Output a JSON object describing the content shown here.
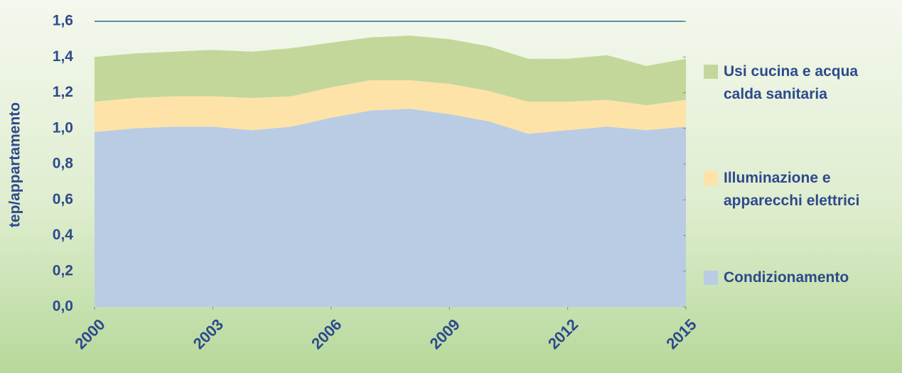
{
  "chart_data": {
    "type": "stacked_area",
    "y_label": "tep/appartamento",
    "x": [
      2000,
      2001,
      2002,
      2003,
      2004,
      2005,
      2006,
      2007,
      2008,
      2009,
      2010,
      2011,
      2012,
      2013,
      2014,
      2015
    ],
    "xlim": [
      2000,
      2015
    ],
    "xticks": [
      2000,
      2003,
      2006,
      2009,
      2012,
      2015
    ],
    "ylim": [
      0,
      1.6
    ],
    "yticks": [
      {
        "value": 0,
        "label": "0,0"
      },
      {
        "value": 0.2,
        "label": "0,2"
      },
      {
        "value": 0.4,
        "label": "0,4"
      },
      {
        "value": 0.6,
        "label": "0,6"
      },
      {
        "value": 0.8,
        "label": "0,8"
      },
      {
        "value": 1.0,
        "label": "1,0"
      },
      {
        "value": 1.2,
        "label": "1,2"
      },
      {
        "value": 1.4,
        "label": "1,4"
      },
      {
        "value": 1.6,
        "label": "1,6"
      }
    ],
    "series": [
      {
        "name": "Condizionamento",
        "color": "#b9cce4",
        "values": [
          0.98,
          1.0,
          1.01,
          1.01,
          0.99,
          1.01,
          1.06,
          1.1,
          1.11,
          1.08,
          1.04,
          0.97,
          0.99,
          1.01,
          0.99,
          1.01
        ]
      },
      {
        "name": "Illuminazione e apparecchi elettrici",
        "color": "#fde3a8",
        "values": [
          0.17,
          0.17,
          0.17,
          0.17,
          0.18,
          0.17,
          0.17,
          0.17,
          0.16,
          0.17,
          0.17,
          0.18,
          0.16,
          0.15,
          0.14,
          0.15
        ]
      },
      {
        "name": "Usi cucina e acqua calda sanitaria",
        "color": "#c4d79b",
        "values": [
          0.25,
          0.25,
          0.25,
          0.26,
          0.26,
          0.27,
          0.25,
          0.24,
          0.25,
          0.25,
          0.25,
          0.24,
          0.24,
          0.25,
          0.22,
          0.23
        ]
      }
    ]
  }
}
